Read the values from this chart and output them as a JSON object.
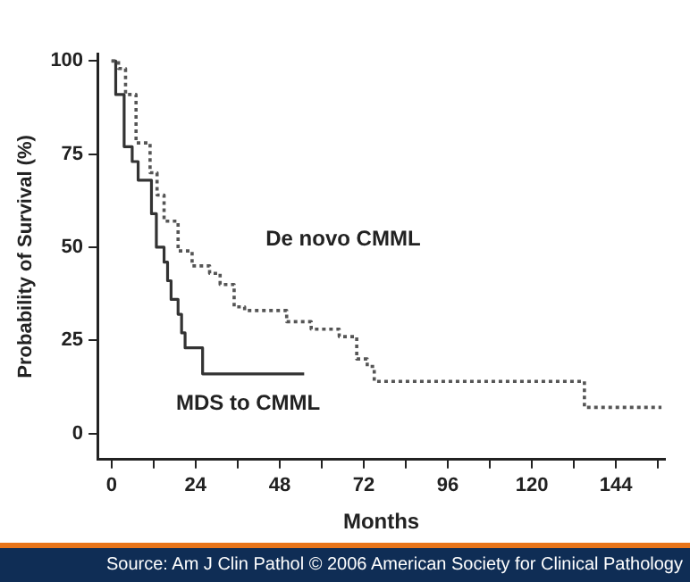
{
  "chart_data": {
    "type": "step",
    "xlabel": "Months",
    "ylabel": "Probability of Survival (%)",
    "annotations": [
      "Source: Am J Clin Pathol © 2006 American Society for Clinical Pathology"
    ],
    "xlim": [
      -4,
      158
    ],
    "ylim": [
      -7,
      102
    ],
    "xticks": [
      0,
      {
        "value": 12,
        "label": null
      },
      24,
      {
        "value": 36,
        "label": null
      },
      48,
      {
        "value": 60,
        "label": null
      },
      72,
      {
        "value": 84,
        "label": null
      },
      96,
      {
        "value": 108,
        "label": null
      },
      120,
      {
        "value": 132,
        "label": null
      },
      144,
      {
        "value": 156,
        "label": null
      }
    ],
    "yticks": [
      0,
      25,
      50,
      75,
      100
    ],
    "grid": false,
    "legend": false,
    "marker": "none",
    "series": [
      {
        "name": "De novo CMML",
        "color": "#555555",
        "line_style": "dotted",
        "x": [
          0,
          2,
          4,
          7,
          11,
          13,
          15,
          19,
          23,
          28,
          31,
          35,
          38,
          47,
          50,
          55,
          57,
          63,
          65,
          69,
          70,
          73,
          75,
          135,
          157
        ],
        "values": [
          100,
          98,
          91,
          78,
          70,
          64,
          57,
          49,
          45,
          43,
          40,
          34,
          33,
          33,
          30,
          30,
          28,
          28,
          26,
          26,
          20,
          18,
          14,
          7,
          7
        ]
      },
      {
        "name": "MDS to CMML",
        "color": "#333333",
        "line_style": "solid",
        "x": [
          0,
          1.2,
          3.6,
          5.9,
          7.6,
          11.4,
          12.8,
          15,
          16,
          17,
          19,
          20,
          21,
          26,
          55
        ],
        "values": [
          100,
          91,
          77,
          73,
          68,
          59,
          50,
          46,
          41,
          36,
          32,
          27,
          23,
          16,
          16
        ]
      }
    ]
  }
}
